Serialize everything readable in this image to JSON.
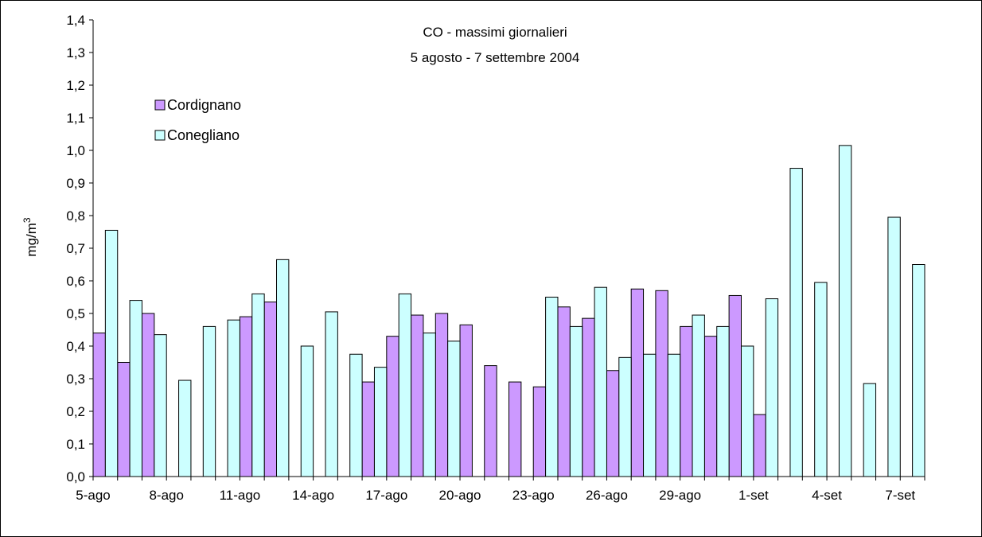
{
  "chart_data": {
    "type": "bar",
    "title": "CO - massimi giornalieri",
    "subtitle": "5 agosto - 7 settembre 2004",
    "xlabel": "",
    "ylabel": "mg/m",
    "ylabel_superscript": "3",
    "ylim": [
      0,
      1.4
    ],
    "y_tick_labels": [
      "0,0",
      "0,1",
      "0,2",
      "0,3",
      "0,4",
      "0,5",
      "0,6",
      "0,7",
      "0,8",
      "0,9",
      "1,0",
      "1,1",
      "1,2",
      "1,3",
      "1,4"
    ],
    "x_tick_labels": [
      {
        "index": 0,
        "label": "5-ago"
      },
      {
        "index": 3,
        "label": "8-ago"
      },
      {
        "index": 6,
        "label": "11-ago"
      },
      {
        "index": 9,
        "label": "14-ago"
      },
      {
        "index": 12,
        "label": "17-ago"
      },
      {
        "index": 15,
        "label": "20-ago"
      },
      {
        "index": 18,
        "label": "23-ago"
      },
      {
        "index": 21,
        "label": "26-ago"
      },
      {
        "index": 24,
        "label": "29-ago"
      },
      {
        "index": 27,
        "label": "1-set"
      },
      {
        "index": 30,
        "label": "4-set"
      },
      {
        "index": 33,
        "label": "7-set"
      }
    ],
    "categories": [
      "5-ago",
      "6-ago",
      "7-ago",
      "8-ago",
      "9-ago",
      "10-ago",
      "11-ago",
      "12-ago",
      "13-ago",
      "14-ago",
      "15-ago",
      "16-ago",
      "17-ago",
      "18-ago",
      "19-ago",
      "20-ago",
      "21-ago",
      "22-ago",
      "23-ago",
      "24-ago",
      "25-ago",
      "26-ago",
      "27-ago",
      "28-ago",
      "29-ago",
      "30-ago",
      "31-ago",
      "1-set",
      "2-set",
      "3-set",
      "4-set",
      "5-set",
      "6-set",
      "7-set"
    ],
    "series": [
      {
        "name": "Cordignano",
        "color": "#cc99ff",
        "values": [
          0.44,
          0.35,
          0.5,
          null,
          null,
          null,
          0.49,
          0.535,
          null,
          null,
          null,
          0.29,
          0.43,
          0.495,
          0.5,
          0.465,
          0.34,
          0.29,
          0.275,
          0.52,
          0.485,
          0.325,
          0.575,
          0.57,
          0.46,
          0.43,
          0.555,
          0.19,
          null,
          null,
          null,
          null,
          null,
          null
        ]
      },
      {
        "name": "Conegliano",
        "color": "#ccffff",
        "values": [
          0.755,
          0.54,
          0.435,
          0.295,
          0.46,
          0.48,
          0.56,
          0.665,
          0.4,
          0.505,
          0.375,
          0.335,
          0.56,
          0.44,
          0.415,
          null,
          null,
          null,
          0.55,
          0.46,
          0.58,
          0.365,
          0.375,
          0.375,
          0.495,
          0.46,
          0.4,
          0.545,
          0.945,
          0.595,
          1.015,
          0.285,
          0.795,
          0.65
        ]
      }
    ],
    "legend_position": "top-left",
    "grid": false
  }
}
